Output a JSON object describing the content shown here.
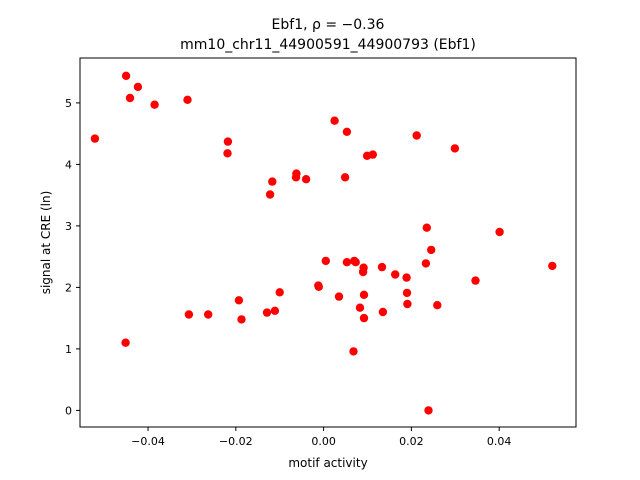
{
  "chart_data": {
    "type": "scatter",
    "title_line1": "Ebf1, ρ = −0.36",
    "title_line2": "mm10_chr11_44900591_44900793 (Ebf1)",
    "xlabel": "motif activity",
    "ylabel": "signal at CRE (ln)",
    "xlim": [
      -0.0555,
      0.0575
    ],
    "ylim": [
      -0.27,
      5.73
    ],
    "xticks": [
      -0.04,
      -0.02,
      0.0,
      0.02,
      0.04
    ],
    "xtick_labels": [
      "−0.04",
      "−0.02",
      "0.00",
      "0.02",
      "0.04"
    ],
    "yticks": [
      0,
      1,
      2,
      3,
      4,
      5
    ],
    "ytick_labels": [
      "0",
      "1",
      "2",
      "3",
      "4",
      "5"
    ],
    "grid": false,
    "marker_color": "#ff0000",
    "points": [
      {
        "x": -0.0521,
        "y": 4.42
      },
      {
        "x": -0.045,
        "y": 5.44
      },
      {
        "x": -0.0441,
        "y": 5.08
      },
      {
        "x": -0.0423,
        "y": 5.26
      },
      {
        "x": -0.0385,
        "y": 4.97
      },
      {
        "x": -0.031,
        "y": 5.05
      },
      {
        "x": -0.0451,
        "y": 1.1
      },
      {
        "x": -0.0307,
        "y": 1.56
      },
      {
        "x": -0.0263,
        "y": 1.56
      },
      {
        "x": -0.0218,
        "y": 4.37
      },
      {
        "x": -0.0219,
        "y": 4.18
      },
      {
        "x": -0.0193,
        "y": 1.79
      },
      {
        "x": -0.0187,
        "y": 1.48
      },
      {
        "x": -0.0129,
        "y": 1.59
      },
      {
        "x": -0.0111,
        "y": 1.62
      },
      {
        "x": -0.01,
        "y": 1.92
      },
      {
        "x": -0.0122,
        "y": 3.51
      },
      {
        "x": -0.0117,
        "y": 3.72
      },
      {
        "x": -0.0063,
        "y": 3.79
      },
      {
        "x": -0.0062,
        "y": 3.85
      },
      {
        "x": -0.004,
        "y": 3.76
      },
      {
        "x": -0.0012,
        "y": 2.03
      },
      {
        "x": -0.0011,
        "y": 2.01
      },
      {
        "x": 0.0005,
        "y": 2.43
      },
      {
        "x": 0.0025,
        "y": 4.71
      },
      {
        "x": 0.0035,
        "y": 1.85
      },
      {
        "x": 0.0049,
        "y": 3.79
      },
      {
        "x": 0.0053,
        "y": 4.53
      },
      {
        "x": 0.0053,
        "y": 2.41
      },
      {
        "x": 0.007,
        "y": 2.43
      },
      {
        "x": 0.0073,
        "y": 2.41
      },
      {
        "x": 0.0068,
        "y": 0.96
      },
      {
        "x": 0.0083,
        "y": 1.67
      },
      {
        "x": 0.009,
        "y": 2.25
      },
      {
        "x": 0.0091,
        "y": 2.32
      },
      {
        "x": 0.0092,
        "y": 1.88
      },
      {
        "x": 0.0092,
        "y": 1.5
      },
      {
        "x": 0.0099,
        "y": 4.14
      },
      {
        "x": 0.0112,
        "y": 4.16
      },
      {
        "x": 0.0133,
        "y": 2.33
      },
      {
        "x": 0.0135,
        "y": 1.6
      },
      {
        "x": 0.0163,
        "y": 2.21
      },
      {
        "x": 0.0189,
        "y": 2.16
      },
      {
        "x": 0.019,
        "y": 1.91
      },
      {
        "x": 0.0191,
        "y": 1.73
      },
      {
        "x": 0.0212,
        "y": 4.47
      },
      {
        "x": 0.0233,
        "y": 2.39
      },
      {
        "x": 0.0235,
        "y": 2.97
      },
      {
        "x": 0.0245,
        "y": 2.61
      },
      {
        "x": 0.0239,
        "y": 0.0
      },
      {
        "x": 0.0259,
        "y": 1.71
      },
      {
        "x": 0.0299,
        "y": 4.26
      },
      {
        "x": 0.0346,
        "y": 2.11
      },
      {
        "x": 0.0401,
        "y": 2.9
      },
      {
        "x": 0.0521,
        "y": 2.35
      }
    ]
  }
}
